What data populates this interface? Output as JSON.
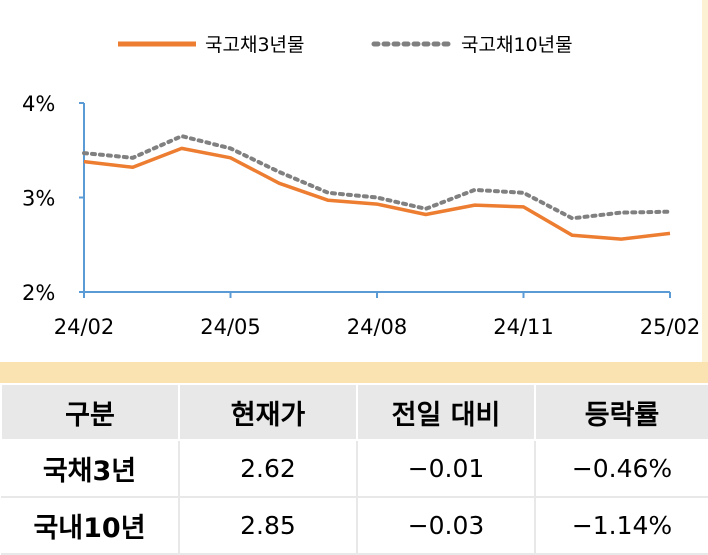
{
  "chart_data": {
    "type": "line",
    "legend": [
      "국고채3년물",
      "국고채10년물"
    ],
    "legend_position": "top",
    "x_ticks": [
      "24/02",
      "24/05",
      "24/08",
      "24/11",
      "25/02"
    ],
    "y_ticks": [
      "4%",
      "3%",
      "2%"
    ],
    "ylim": [
      2,
      4
    ],
    "grid": false,
    "series": [
      {
        "name": "국고채3년물",
        "color": "#ed7d31",
        "style": "solid",
        "x": [
          "24/02",
          "24/03",
          "24/04",
          "24/05",
          "24/06",
          "24/07",
          "24/08",
          "24/09",
          "24/10",
          "24/11",
          "24/12",
          "25/01",
          "25/02"
        ],
        "values": [
          3.38,
          3.32,
          3.52,
          3.42,
          3.15,
          2.97,
          2.93,
          2.82,
          2.92,
          2.9,
          2.6,
          2.56,
          2.62
        ]
      },
      {
        "name": "국고채10년물",
        "color": "#808080",
        "style": "dotted",
        "x": [
          "24/02",
          "24/03",
          "24/04",
          "24/05",
          "24/06",
          "24/07",
          "24/08",
          "24/09",
          "24/10",
          "24/11",
          "24/12",
          "25/01",
          "25/02"
        ],
        "values": [
          3.47,
          3.42,
          3.65,
          3.52,
          3.27,
          3.05,
          3.0,
          2.88,
          3.08,
          3.05,
          2.78,
          2.84,
          2.85
        ]
      }
    ]
  },
  "table": {
    "headers": [
      "구분",
      "현재가",
      "전일 대비",
      "등락률"
    ],
    "rows": [
      [
        "국채3년",
        "2.62",
        "−0.01",
        "−0.46%"
      ],
      [
        "국내10년",
        "2.85",
        "−0.03",
        "−1.14%"
      ]
    ]
  }
}
